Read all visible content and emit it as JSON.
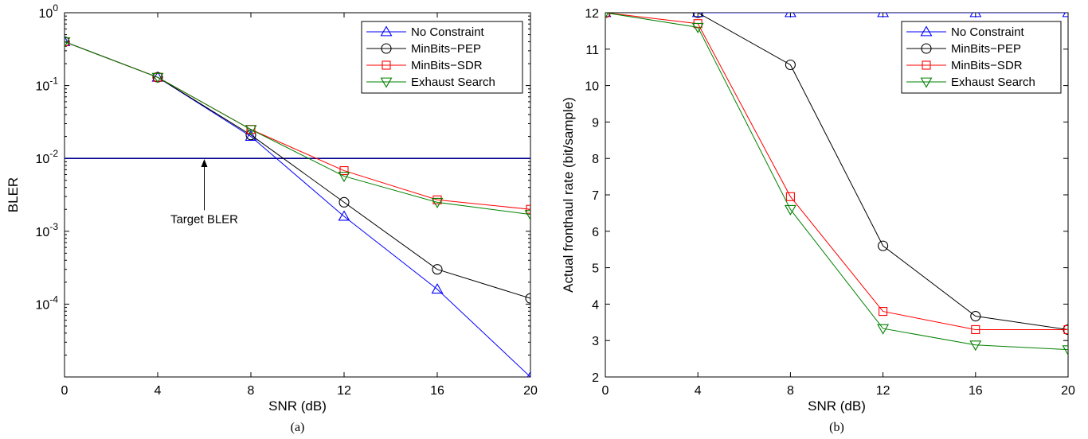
{
  "chart_data": [
    {
      "type": "line",
      "caption": "(a)",
      "xlabel": "SNR (dB)",
      "ylabel": "BLER",
      "yscale": "log",
      "xlim": [
        0,
        20
      ],
      "ylim": [
        1e-05,
        1
      ],
      "x_ticks": [
        "0",
        "4",
        "8",
        "12",
        "16",
        "20"
      ],
      "y_ticks": [
        {
          "base": "10",
          "exp": "0",
          "value": 1
        },
        {
          "base": "10",
          "exp": "-1",
          "value": 0.1
        },
        {
          "base": "10",
          "exp": "-2",
          "value": 0.01
        },
        {
          "base": "10",
          "exp": "-3",
          "value": 0.001
        },
        {
          "base": "10",
          "exp": "-4",
          "value": 0.0001
        }
      ],
      "grid": false,
      "legend_position": "top-right",
      "x": [
        0,
        4,
        8,
        12,
        16,
        20
      ],
      "series": [
        {
          "name": "No Constraint",
          "color": "#0000ff",
          "marker": "triangle-up",
          "values": [
            0.4,
            0.13,
            0.02,
            0.0016,
            0.00016,
            1e-05
          ]
        },
        {
          "name": "MinBits−PEP",
          "color": "#000000",
          "marker": "circle",
          "values": [
            0.4,
            0.13,
            0.021,
            0.0025,
            0.0003,
            0.00012
          ]
        },
        {
          "name": "MinBits−SDR",
          "color": "#ff0000",
          "marker": "square",
          "values": [
            0.4,
            0.13,
            0.025,
            0.0068,
            0.0027,
            0.002
          ]
        },
        {
          "name": "Exhaust Search",
          "color": "#008000",
          "marker": "triangle-down",
          "values": [
            0.4,
            0.13,
            0.025,
            0.0057,
            0.0025,
            0.0017
          ]
        }
      ],
      "reference_line": {
        "value": 0.01,
        "color": "#00008b"
      },
      "annotation": {
        "text": "Target BLER",
        "x": 6,
        "y_text": 0.0013,
        "y_arrow": 0.0098
      }
    },
    {
      "type": "line",
      "caption": "(b)",
      "xlabel": "SNR (dB)",
      "ylabel": "Actual fronthaul rate (bit/sample)",
      "xlim": [
        0,
        20
      ],
      "ylim": [
        2,
        12
      ],
      "x_ticks": [
        "0",
        "4",
        "8",
        "12",
        "16",
        "20"
      ],
      "y_ticks": [
        "2",
        "3",
        "4",
        "5",
        "6",
        "7",
        "8",
        "9",
        "10",
        "11",
        "12"
      ],
      "grid": false,
      "legend_position": "top-right",
      "x": [
        0,
        4,
        8,
        12,
        16,
        20
      ],
      "series": [
        {
          "name": "No Constraint",
          "color": "#0000ff",
          "marker": "triangle-up",
          "values": [
            12,
            12,
            12,
            12,
            12,
            12
          ]
        },
        {
          "name": "MinBits−PEP",
          "color": "#000000",
          "marker": "circle",
          "values": [
            12,
            12,
            10.57,
            5.6,
            3.67,
            3.3
          ]
        },
        {
          "name": "MinBits−SDR",
          "color": "#ff0000",
          "marker": "square",
          "values": [
            12,
            11.7,
            6.95,
            3.8,
            3.3,
            3.3
          ]
        },
        {
          "name": "Exhaust Search",
          "color": "#008000",
          "marker": "triangle-down",
          "values": [
            12,
            11.6,
            6.6,
            3.33,
            2.88,
            2.75
          ]
        }
      ]
    }
  ]
}
